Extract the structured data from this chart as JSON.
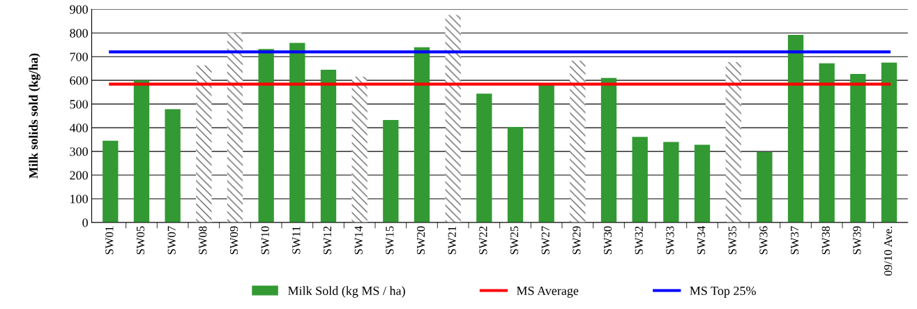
{
  "chart_data": {
    "type": "bar",
    "ylabel": "Milk solids sold (kg/ha)",
    "categories": [
      "SW01",
      "SW05",
      "SW07",
      "SW08",
      "SW09",
      "SW10",
      "SW11",
      "SW12",
      "SW14",
      "SW15",
      "SW20",
      "SW21",
      "SW22",
      "SW25",
      "SW27",
      "SW29",
      "SW30",
      "SW32",
      "SW33",
      "SW34",
      "SW35",
      "SW36",
      "SW37",
      "SW38",
      "SW39",
      "09/10 Ave."
    ],
    "series": [
      {
        "name": "Milk Sold (kg MS / ha)",
        "color": "#339933",
        "colors": [
          "#339933",
          "#339933",
          "#339933",
          "#666666",
          "#666666",
          "#339933",
          "#339933",
          "#339933",
          "#666666",
          "#339933",
          "#339933",
          "#666666",
          "#339933",
          "#339933",
          "#339933",
          "#666666",
          "#339933",
          "#339933",
          "#339933",
          "#339933",
          "#666666",
          "#339933",
          "#339933",
          "#339933",
          "#339933",
          "#339933"
        ],
        "values": [
          345,
          600,
          478,
          663,
          800,
          732,
          758,
          645,
          615,
          433,
          740,
          876,
          544,
          403,
          580,
          683,
          610,
          361,
          340,
          328,
          677,
          298,
          792,
          672,
          627,
          675
        ]
      },
      {
        "name": "MS Average",
        "type": "line",
        "color": "#ff0000",
        "values": [
          584,
          584,
          584,
          584,
          584,
          584,
          584,
          584,
          584,
          584,
          584,
          584,
          584,
          584,
          584,
          584,
          584,
          584,
          584,
          584,
          584,
          584,
          584,
          584,
          584,
          584
        ]
      },
      {
        "name": "MS Top 25%",
        "type": "line",
        "color": "#0000ff",
        "values": [
          720,
          720,
          720,
          720,
          720,
          720,
          720,
          720,
          720,
          720,
          720,
          720,
          720,
          720,
          720,
          720,
          720,
          720,
          720,
          720,
          720,
          720,
          720,
          720,
          720,
          720
        ]
      }
    ],
    "ylim": [
      0,
      900
    ],
    "yticks": [
      0,
      100,
      200,
      300,
      400,
      500,
      600,
      700,
      800,
      900
    ],
    "grid": "y",
    "legend": "bottom",
    "marker": "none",
    "line_style": "solid"
  }
}
